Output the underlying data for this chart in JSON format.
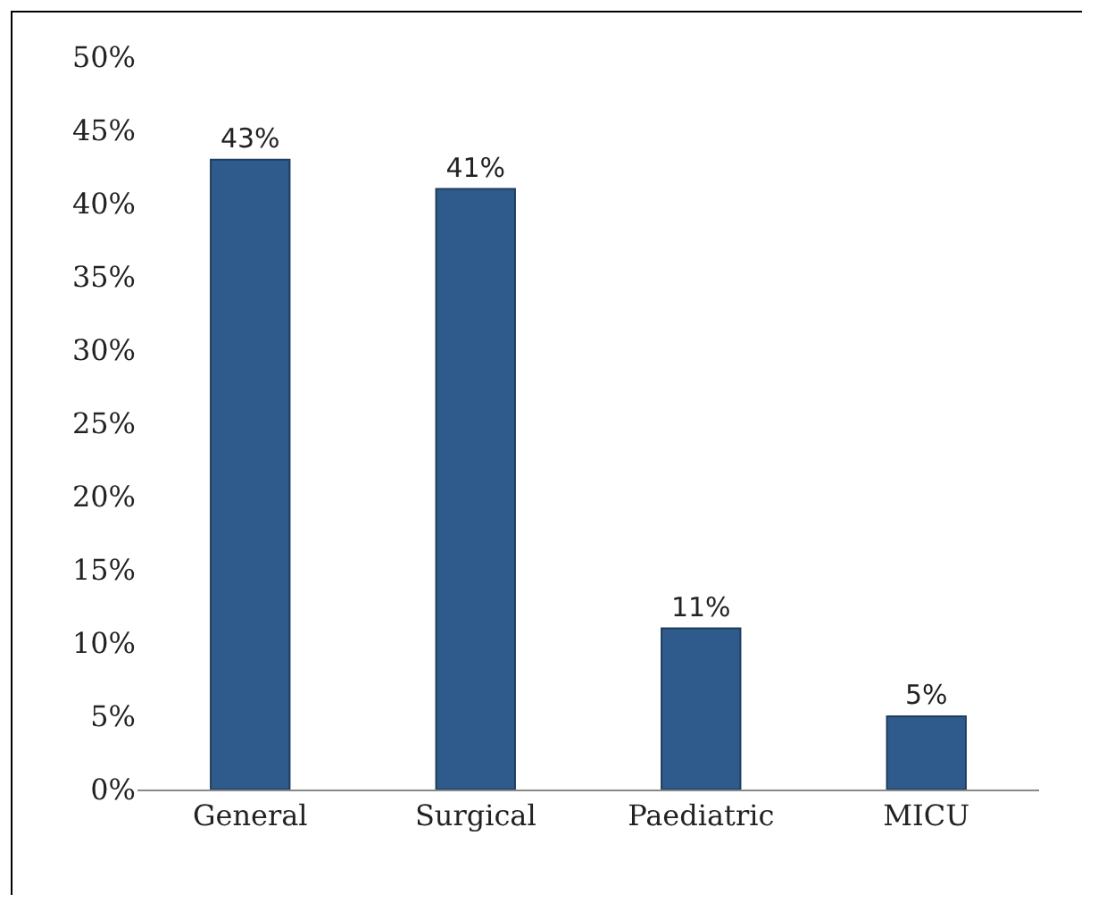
{
  "chart_data": {
    "type": "bar",
    "categories": [
      "General",
      "Surgical",
      "Paediatric",
      "MICU"
    ],
    "values": [
      43,
      41,
      11,
      5
    ],
    "value_labels": [
      "43%",
      "41%",
      "11%",
      "5%"
    ],
    "color": "#2f5b8c",
    "ylim": [
      0,
      50
    ],
    "yticks": [
      {
        "value": 0,
        "label": "0%"
      },
      {
        "value": 5,
        "label": "5%"
      },
      {
        "value": 10,
        "label": "10%"
      },
      {
        "value": 15,
        "label": "15%"
      },
      {
        "value": 20,
        "label": "20%"
      },
      {
        "value": 25,
        "label": "25%"
      },
      {
        "value": 30,
        "label": "30%"
      },
      {
        "value": 35,
        "label": "35%"
      },
      {
        "value": 40,
        "label": "40%"
      },
      {
        "value": 45,
        "label": "45%"
      },
      {
        "value": 50,
        "label": "50%"
      }
    ],
    "grid": false,
    "legend": false
  }
}
